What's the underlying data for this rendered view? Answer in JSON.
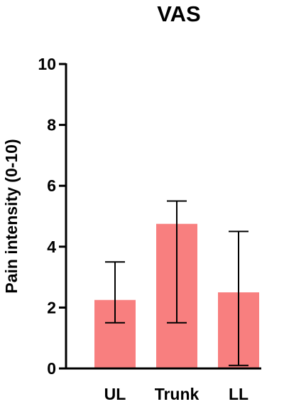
{
  "chart_data": {
    "type": "bar",
    "title": "VAS",
    "xlabel": "",
    "ylabel": "Pain intensity (0-10)",
    "categories": [
      "UL",
      "Trunk",
      "LL"
    ],
    "values": [
      2.25,
      4.75,
      2.5
    ],
    "error_low": [
      1.5,
      1.5,
      0.1
    ],
    "error_high": [
      3.5,
      5.5,
      4.5
    ],
    "ylim": [
      0,
      10
    ],
    "yticks": [
      "0",
      "2",
      "4",
      "6",
      "8",
      "10"
    ],
    "grid": false,
    "legend": "none",
    "bar_color": "#f87f7f",
    "axis_color": "#000000"
  }
}
